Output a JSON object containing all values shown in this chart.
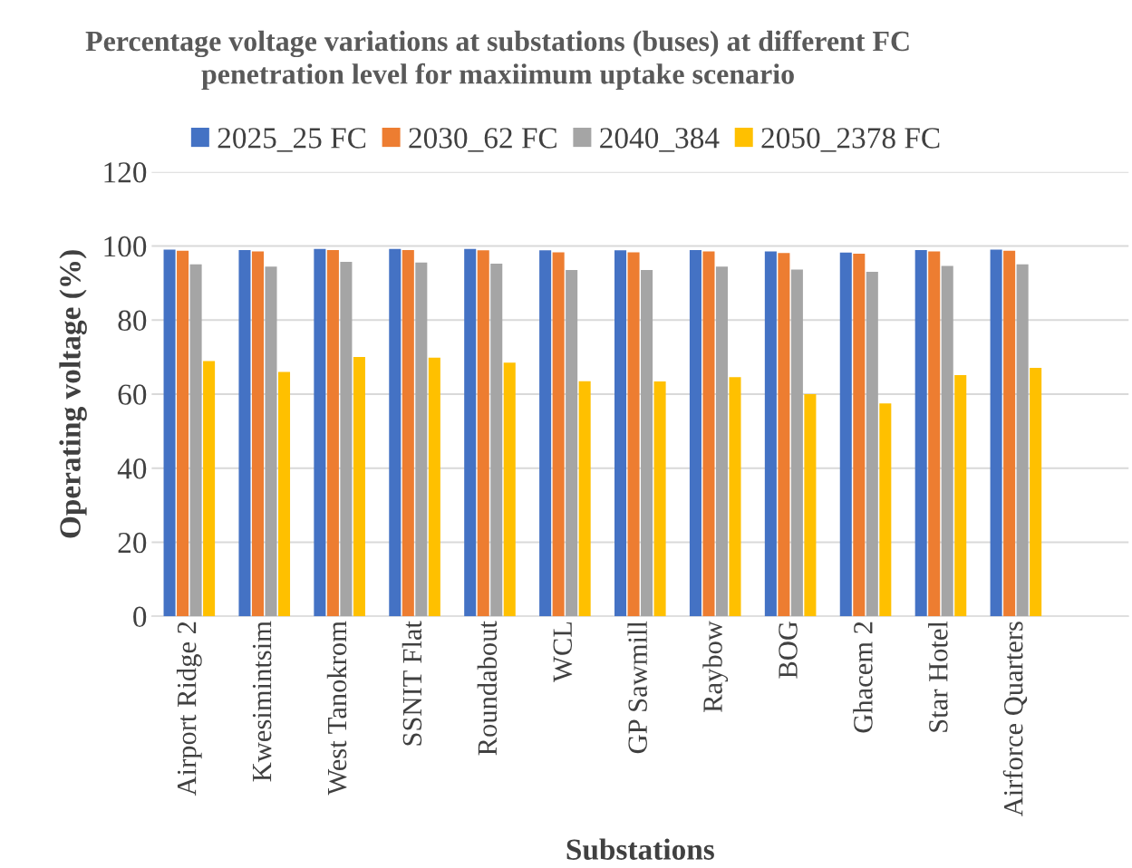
{
  "chart_data": {
    "type": "bar",
    "title": "Percentage voltage variations at substations (buses) at different FC\npenetration level for maxiimum uptake scenario",
    "xlabel": "Substations",
    "ylabel": "Operating voltage (%)",
    "categories": [
      "Airport Ridge 2",
      "Kwesimintsim",
      "West Tanokrom",
      "SSNIT Flat",
      "Roundabout",
      "WCL",
      "GP Sawmill",
      "Raybow",
      "BOG",
      "Ghacem 2",
      "Star Hotel",
      "Airforce Quarters",
      null
    ],
    "series": [
      {
        "name": "2025_25 FC",
        "color": "#4472c4",
        "values": [
          99.0,
          98.9,
          99.2,
          99.2,
          99.2,
          98.8,
          98.8,
          98.9,
          98.5,
          98.2,
          98.9,
          99.0,
          null
        ]
      },
      {
        "name": "2030_62 FC",
        "color": "#ed7d31",
        "values": [
          98.7,
          98.5,
          98.9,
          98.9,
          98.8,
          98.3,
          98.3,
          98.5,
          98.1,
          97.9,
          98.5,
          98.7,
          null
        ]
      },
      {
        "name": "2040_384",
        "color": "#a5a5a5",
        "values": [
          95.0,
          94.4,
          95.7,
          95.5,
          95.2,
          93.5,
          93.5,
          94.4,
          93.6,
          93.0,
          94.6,
          95.0,
          null
        ]
      },
      {
        "name": "2050_2378 FC",
        "color": "#ffc000",
        "values": [
          68.9,
          66.0,
          70.0,
          69.8,
          68.5,
          63.5,
          63.4,
          64.6,
          60.0,
          57.5,
          65.1,
          67.1,
          null
        ]
      }
    ],
    "ylim": [
      0,
      120
    ],
    "yticks": [
      0,
      20,
      40,
      60,
      80,
      100,
      120
    ],
    "grid": "y",
    "legend": "top"
  }
}
